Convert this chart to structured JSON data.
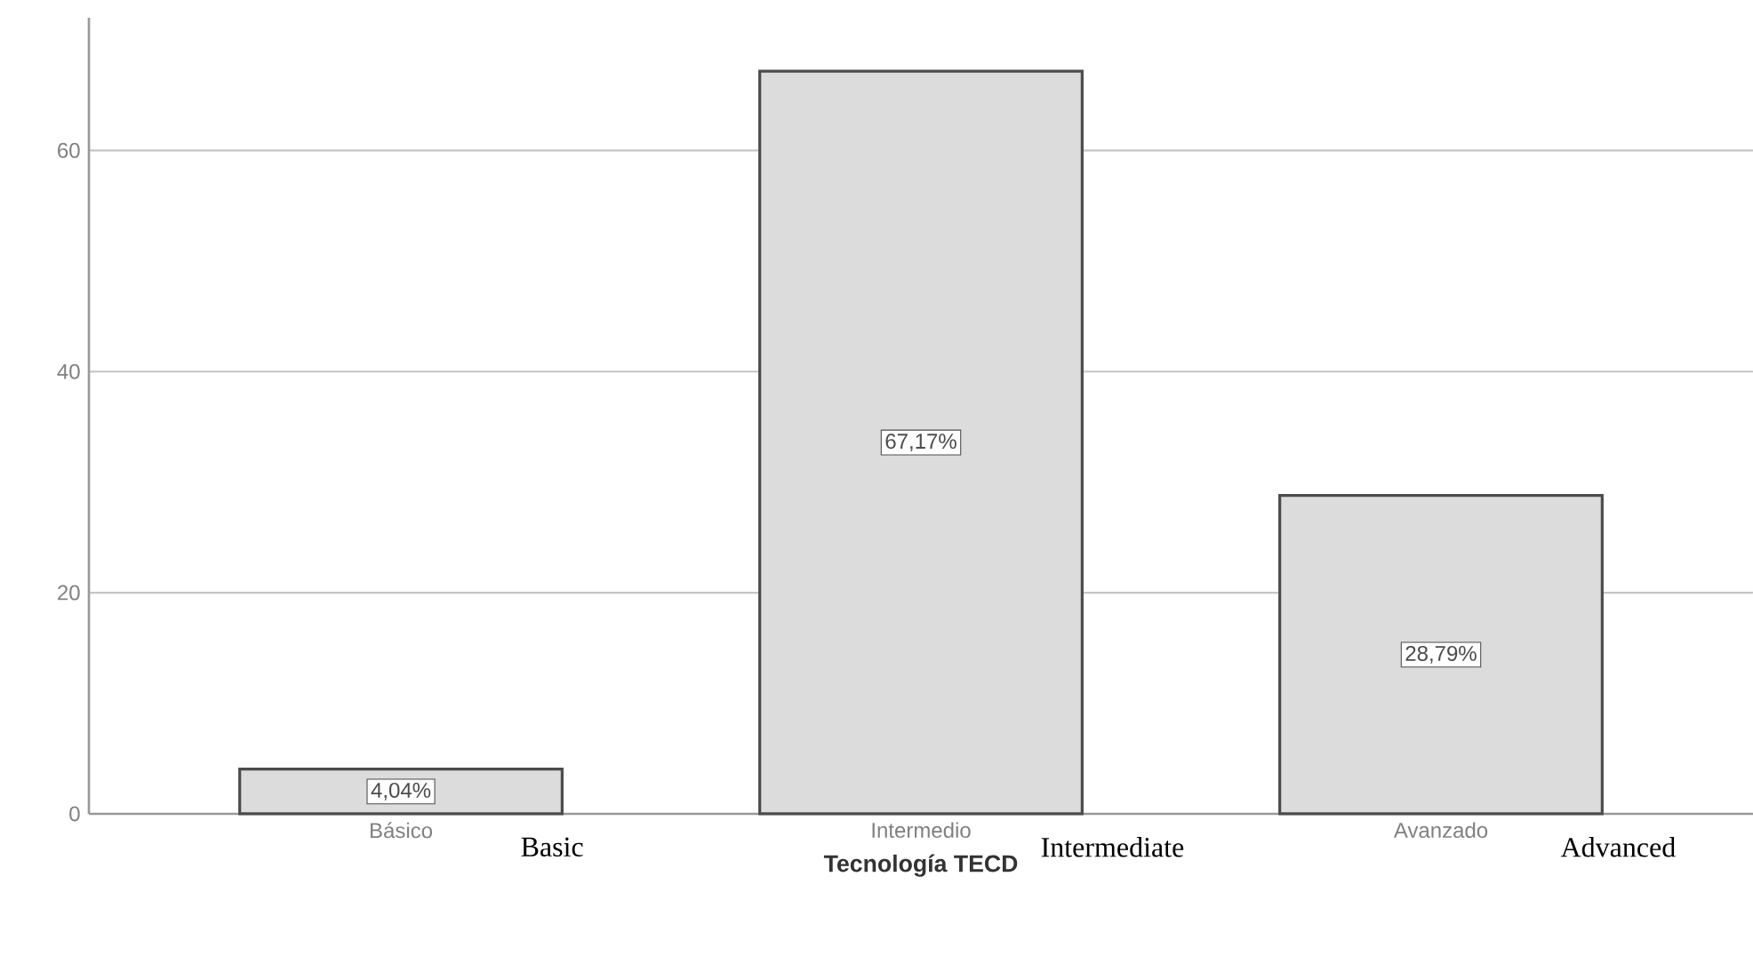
{
  "chart_data": {
    "type": "bar",
    "xlabel": "Tecnología TECD",
    "categories": [
      "Básico",
      "Intermedio",
      "Avanzado"
    ],
    "values": [
      4.04,
      67.17,
      28.79
    ],
    "value_labels": [
      "4,04%",
      "67,17%",
      "28,79%"
    ],
    "color": "#dcdcdc",
    "ylim": [
      0,
      72
    ],
    "yticks": [
      0,
      20,
      40,
      60
    ],
    "grid": "y",
    "annotations": [
      "Basic",
      "Intermediate",
      "Advanced"
    ]
  }
}
